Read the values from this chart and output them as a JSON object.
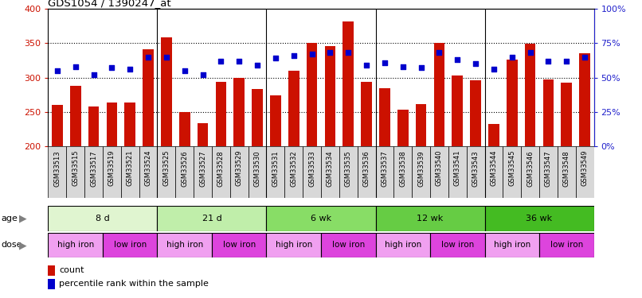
{
  "title": "GDS1054 / 1390247_at",
  "samples": [
    "GSM33513",
    "GSM33515",
    "GSM33517",
    "GSM33519",
    "GSM33521",
    "GSM33524",
    "GSM33525",
    "GSM33526",
    "GSM33527",
    "GSM33528",
    "GSM33529",
    "GSM33530",
    "GSM33531",
    "GSM33532",
    "GSM33533",
    "GSM33534",
    "GSM33535",
    "GSM33536",
    "GSM33537",
    "GSM33538",
    "GSM33539",
    "GSM33540",
    "GSM33541",
    "GSM33543",
    "GSM33544",
    "GSM33545",
    "GSM33546",
    "GSM33547",
    "GSM33548",
    "GSM33549"
  ],
  "counts": [
    260,
    288,
    258,
    264,
    264,
    341,
    359,
    250,
    233,
    294,
    299,
    283,
    274,
    310,
    350,
    346,
    382,
    294,
    284,
    253,
    261,
    350,
    303,
    296,
    232,
    326,
    349,
    297,
    293,
    335
  ],
  "percentile_ranks": [
    55,
    58,
    52,
    57,
    56,
    65,
    65,
    55,
    52,
    62,
    62,
    59,
    64,
    66,
    67,
    68,
    68,
    59,
    61,
    58,
    57,
    68,
    63,
    60,
    56,
    65,
    68,
    62,
    62,
    65
  ],
  "bar_color": "#cc1100",
  "dot_color": "#0000cc",
  "ymin": 200,
  "ymax": 400,
  "yticks_left": [
    200,
    250,
    300,
    350,
    400
  ],
  "yticks_right": [
    0,
    25,
    50,
    75,
    100
  ],
  "age_groups": [
    {
      "label": "8 d",
      "start": 0,
      "end": 6,
      "color": "#e0f5d0"
    },
    {
      "label": "21 d",
      "start": 6,
      "end": 12,
      "color": "#c0eeaa"
    },
    {
      "label": "6 wk",
      "start": 12,
      "end": 18,
      "color": "#88dd66"
    },
    {
      "label": "12 wk",
      "start": 18,
      "end": 24,
      "color": "#66cc44"
    },
    {
      "label": "36 wk",
      "start": 24,
      "end": 30,
      "color": "#44bb22"
    }
  ],
  "dose_groups": [
    {
      "label": "high iron",
      "start": 0,
      "end": 3,
      "color": "#f0a0f0"
    },
    {
      "label": "low iron",
      "start": 3,
      "end": 6,
      "color": "#dd44dd"
    },
    {
      "label": "high iron",
      "start": 6,
      "end": 9,
      "color": "#f0a0f0"
    },
    {
      "label": "low iron",
      "start": 9,
      "end": 12,
      "color": "#dd44dd"
    },
    {
      "label": "high iron",
      "start": 12,
      "end": 15,
      "color": "#f0a0f0"
    },
    {
      "label": "low iron",
      "start": 15,
      "end": 18,
      "color": "#dd44dd"
    },
    {
      "label": "high iron",
      "start": 18,
      "end": 21,
      "color": "#f0a0f0"
    },
    {
      "label": "low iron",
      "start": 21,
      "end": 24,
      "color": "#dd44dd"
    },
    {
      "label": "high iron",
      "start": 24,
      "end": 27,
      "color": "#f0a0f0"
    },
    {
      "label": "low iron",
      "start": 27,
      "end": 30,
      "color": "#dd44dd"
    }
  ],
  "legend_count_color": "#cc1100",
  "legend_dot_color": "#0000cc",
  "age_label": "age",
  "dose_label": "dose",
  "right_axis_color": "#2222cc",
  "left_axis_color": "#cc1100",
  "xtick_bg_color": "#d8d8d8",
  "age_groups_border_color": "#000000",
  "dose_groups_border_color": "#000000"
}
